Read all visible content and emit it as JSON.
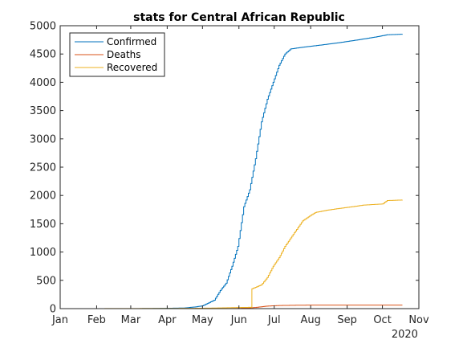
{
  "chart_data": {
    "type": "line",
    "title": "stats for Central African Republic",
    "xlabel": "",
    "ylabel": "",
    "x_tick_labels": [
      "Jan",
      "Feb",
      "Mar",
      "Apr",
      "May",
      "Jun",
      "Jul",
      "Aug",
      "Sep",
      "Oct",
      "Nov"
    ],
    "x_year_label": "2020",
    "xlim": [
      "2020-01-01",
      "2020-11-01"
    ],
    "y_ticks": [
      0,
      500,
      1000,
      1500,
      2000,
      2500,
      3000,
      3500,
      4000,
      4500,
      5000
    ],
    "ylim": [
      0,
      5000
    ],
    "grid": false,
    "legend_position": "top-left",
    "series": [
      {
        "name": "Confirmed",
        "color": "#0072BD",
        "points": [
          [
            "2020-01-22",
            0
          ],
          [
            "2020-03-14",
            1
          ],
          [
            "2020-03-30",
            6
          ],
          [
            "2020-04-15",
            11
          ],
          [
            "2020-04-25",
            30
          ],
          [
            "2020-05-01",
            50
          ],
          [
            "2020-05-06",
            100
          ],
          [
            "2020-05-11",
            150
          ],
          [
            "2020-05-16",
            320
          ],
          [
            "2020-05-21",
            450
          ],
          [
            "2020-05-26",
            750
          ],
          [
            "2020-05-31",
            1100
          ],
          [
            "2020-06-05",
            1800
          ],
          [
            "2020-06-10",
            2100
          ],
          [
            "2020-06-15",
            2650
          ],
          [
            "2020-06-20",
            3300
          ],
          [
            "2020-06-25",
            3700
          ],
          [
            "2020-06-30",
            4000
          ],
          [
            "2020-07-05",
            4300
          ],
          [
            "2020-07-10",
            4500
          ],
          [
            "2020-07-15",
            4590
          ],
          [
            "2020-07-25",
            4620
          ],
          [
            "2020-08-10",
            4660
          ],
          [
            "2020-08-25",
            4700
          ],
          [
            "2020-09-10",
            4750
          ],
          [
            "2020-09-25",
            4800
          ],
          [
            "2020-10-05",
            4840
          ],
          [
            "2020-10-18",
            4850
          ]
        ]
      },
      {
        "name": "Deaths",
        "color": "#D95319",
        "points": [
          [
            "2020-01-22",
            0
          ],
          [
            "2020-05-20",
            0
          ],
          [
            "2020-06-01",
            5
          ],
          [
            "2020-06-15",
            20
          ],
          [
            "2020-06-25",
            45
          ],
          [
            "2020-07-05",
            55
          ],
          [
            "2020-07-20",
            60
          ],
          [
            "2020-08-01",
            62
          ],
          [
            "2020-08-20",
            62
          ],
          [
            "2020-09-20",
            62
          ],
          [
            "2020-10-18",
            62
          ]
        ]
      },
      {
        "name": "Recovered",
        "color": "#EDB120",
        "points": [
          [
            "2020-01-22",
            0
          ],
          [
            "2020-04-20",
            5
          ],
          [
            "2020-05-10",
            10
          ],
          [
            "2020-06-01",
            20
          ],
          [
            "2020-06-11",
            23
          ],
          [
            "2020-06-12",
            350
          ],
          [
            "2020-06-20",
            420
          ],
          [
            "2020-06-25",
            550
          ],
          [
            "2020-06-30",
            750
          ],
          [
            "2020-07-05",
            900
          ],
          [
            "2020-07-10",
            1100
          ],
          [
            "2020-07-15",
            1250
          ],
          [
            "2020-07-20",
            1400
          ],
          [
            "2020-07-25",
            1550
          ],
          [
            "2020-08-01",
            1650
          ],
          [
            "2020-08-05",
            1700
          ],
          [
            "2020-08-15",
            1740
          ],
          [
            "2020-08-25",
            1770
          ],
          [
            "2020-09-05",
            1800
          ],
          [
            "2020-09-15",
            1830
          ],
          [
            "2020-10-01",
            1850
          ],
          [
            "2020-10-05",
            1910
          ],
          [
            "2020-10-18",
            1920
          ]
        ]
      }
    ]
  }
}
